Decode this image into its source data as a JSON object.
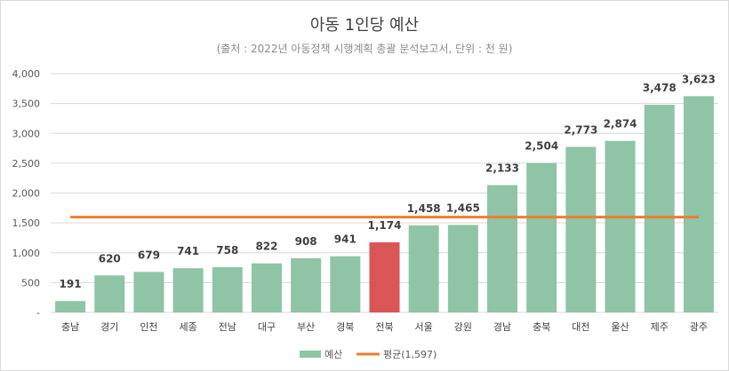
{
  "chart_data": {
    "type": "bar",
    "title": "아동 1인당 예산",
    "subtitle": "(출처 : 2022년 아동정책 시행계획 총괄 분석보고서, 단위 : 천 원)",
    "categories": [
      "충남",
      "경기",
      "인천",
      "세종",
      "전남",
      "대구",
      "부산",
      "경북",
      "전북",
      "서울",
      "강원",
      "경남",
      "충북",
      "대전",
      "울산",
      "제주",
      "광주"
    ],
    "series": [
      {
        "name": "예산",
        "values": [
          191,
          620,
          679,
          741,
          758,
          822,
          908,
          941,
          1174,
          1458,
          1465,
          2133,
          2504,
          2773,
          2874,
          3478,
          3623
        ]
      }
    ],
    "data_labels": [
      "191",
      "620",
      "679",
      "741",
      "758",
      "822",
      "908",
      "941",
      "1,174",
      "1,458",
      "1,465",
      "2,133",
      "2,504",
      "2,773",
      "2,874",
      "3,478",
      "3,623"
    ],
    "highlight_category": "전북",
    "average": {
      "name": "평균(1,597)",
      "value": 1597
    },
    "ylim": [
      0,
      4000
    ],
    "yticks": [
      0,
      500,
      1000,
      1500,
      2000,
      2500,
      3000,
      3500,
      4000
    ],
    "ytick_labels": [
      "-",
      "500",
      "1,000",
      "1,500",
      "2,000",
      "2,500",
      "3,000",
      "3,500",
      "4,000"
    ],
    "xlabel": "",
    "ylabel": "",
    "grid": true,
    "legend_position": "bottom",
    "colors": {
      "bar": "#8fc4a6",
      "highlight": "#d95556",
      "average_line": "#ed7d31",
      "grid": "#d9d9d9"
    }
  }
}
